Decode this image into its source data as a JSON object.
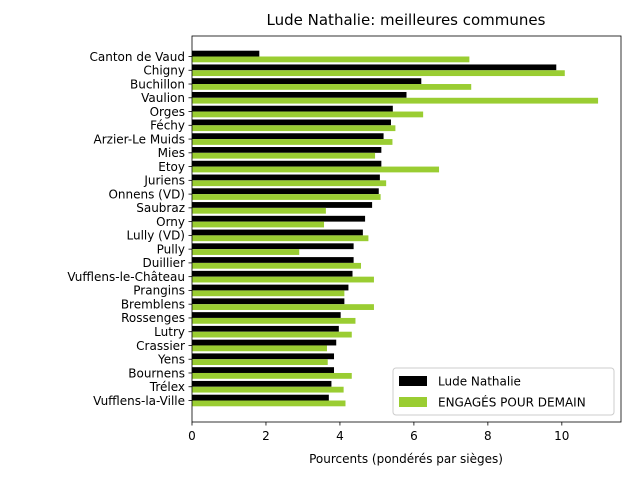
{
  "chart_data": {
    "type": "bar",
    "orientation": "horizontal",
    "title": "Lude Nathalie: meilleures communes",
    "xlabel": "Pourcents (pondérés par sièges)",
    "ylabel": "",
    "xlim": [
      0,
      11.6
    ],
    "xticks": [
      0,
      2,
      4,
      6,
      8,
      10
    ],
    "grid": false,
    "legend_position": "lower-right",
    "categories": [
      "Canton de Vaud",
      "Chigny",
      "Buchillon",
      "Vaulion",
      "Orges",
      "Féchy",
      "Arzier-Le Muids",
      "Mies",
      "Etoy",
      "Juriens",
      "Onnens (VD)",
      "Saubraz",
      "Orny",
      "Lully (VD)",
      "Pully",
      "Duillier",
      "Vufflens-le-Château",
      "Prangins",
      "Bremblens",
      "Rossenges",
      "Lutry",
      "Crassier",
      "Yens",
      "Bournens",
      "Trélex",
      "Vufflens-la-Ville"
    ],
    "series": [
      {
        "name": "Lude Nathalie",
        "color": "#000000",
        "values": [
          1.82,
          9.85,
          6.2,
          5.8,
          5.43,
          5.38,
          5.18,
          5.12,
          5.12,
          5.08,
          5.05,
          4.87,
          4.68,
          4.62,
          4.37,
          4.37,
          4.34,
          4.23,
          4.12,
          4.02,
          3.97,
          3.9,
          3.84,
          3.84,
          3.77,
          3.7
        ]
      },
      {
        "name": "ENGAGÉS POUR DEMAIN",
        "color": "#9acd32",
        "values": [
          7.5,
          10.08,
          7.55,
          10.98,
          6.25,
          5.5,
          5.42,
          4.95,
          6.68,
          5.25,
          5.1,
          3.62,
          3.57,
          4.77,
          2.9,
          4.57,
          4.92,
          4.12,
          4.92,
          4.42,
          4.32,
          3.65,
          3.67,
          4.32,
          4.1,
          4.15
        ]
      }
    ]
  }
}
